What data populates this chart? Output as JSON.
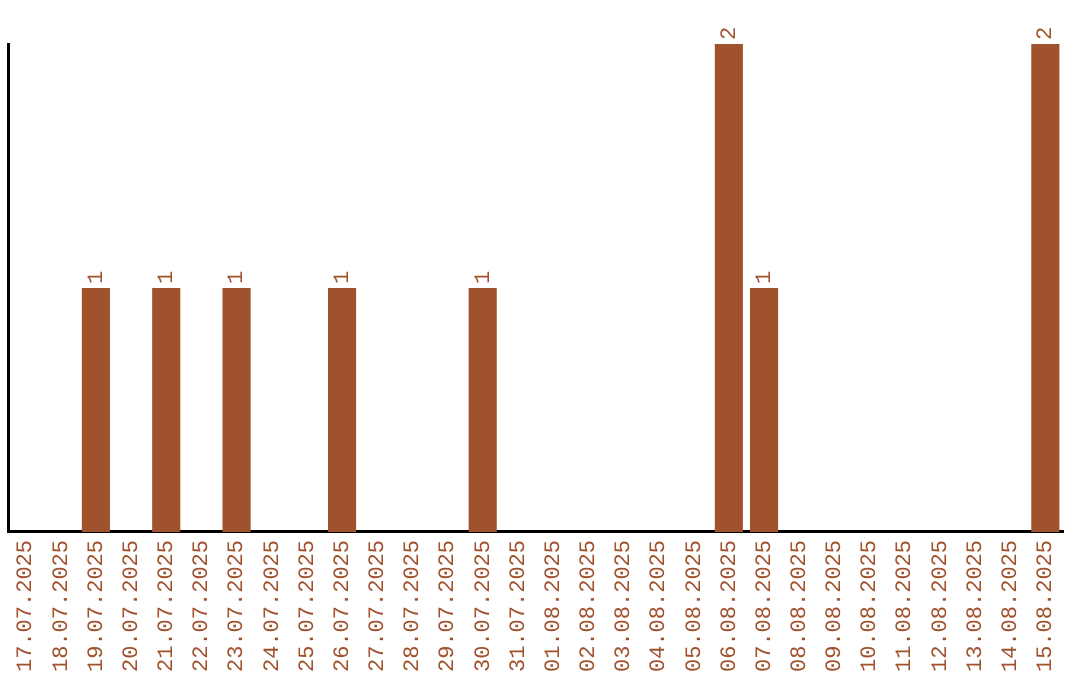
{
  "chart_data": {
    "type": "bar",
    "categories": [
      "17.07.2025",
      "18.07.2025",
      "19.07.2025",
      "20.07.2025",
      "21.07.2025",
      "22.07.2025",
      "23.07.2025",
      "24.07.2025",
      "25.07.2025",
      "26.07.2025",
      "27.07.2025",
      "28.07.2025",
      "29.07.2025",
      "30.07.2025",
      "31.07.2025",
      "01.08.2025",
      "02.08.2025",
      "03.08.2025",
      "04.08.2025",
      "05.08.2025",
      "06.08.2025",
      "07.08.2025",
      "08.08.2025",
      "09.08.2025",
      "10.08.2025",
      "11.08.2025",
      "12.08.2025",
      "13.08.2025",
      "14.08.2025",
      "15.08.2025"
    ],
    "values": [
      0,
      0,
      1,
      0,
      1,
      0,
      1,
      0,
      0,
      1,
      0,
      0,
      0,
      1,
      0,
      0,
      0,
      0,
      0,
      0,
      2,
      1,
      0,
      0,
      0,
      0,
      0,
      0,
      0,
      2
    ],
    "value_labels": [
      null,
      null,
      "1",
      null,
      "1",
      null,
      "1",
      null,
      null,
      "1",
      null,
      null,
      null,
      "1",
      null,
      null,
      null,
      null,
      null,
      null,
      "2",
      "1",
      null,
      null,
      null,
      null,
      null,
      null,
      null,
      "2"
    ],
    "color": "#a0522d",
    "tick_labels": "x",
    "grid": false,
    "legend": false
  }
}
